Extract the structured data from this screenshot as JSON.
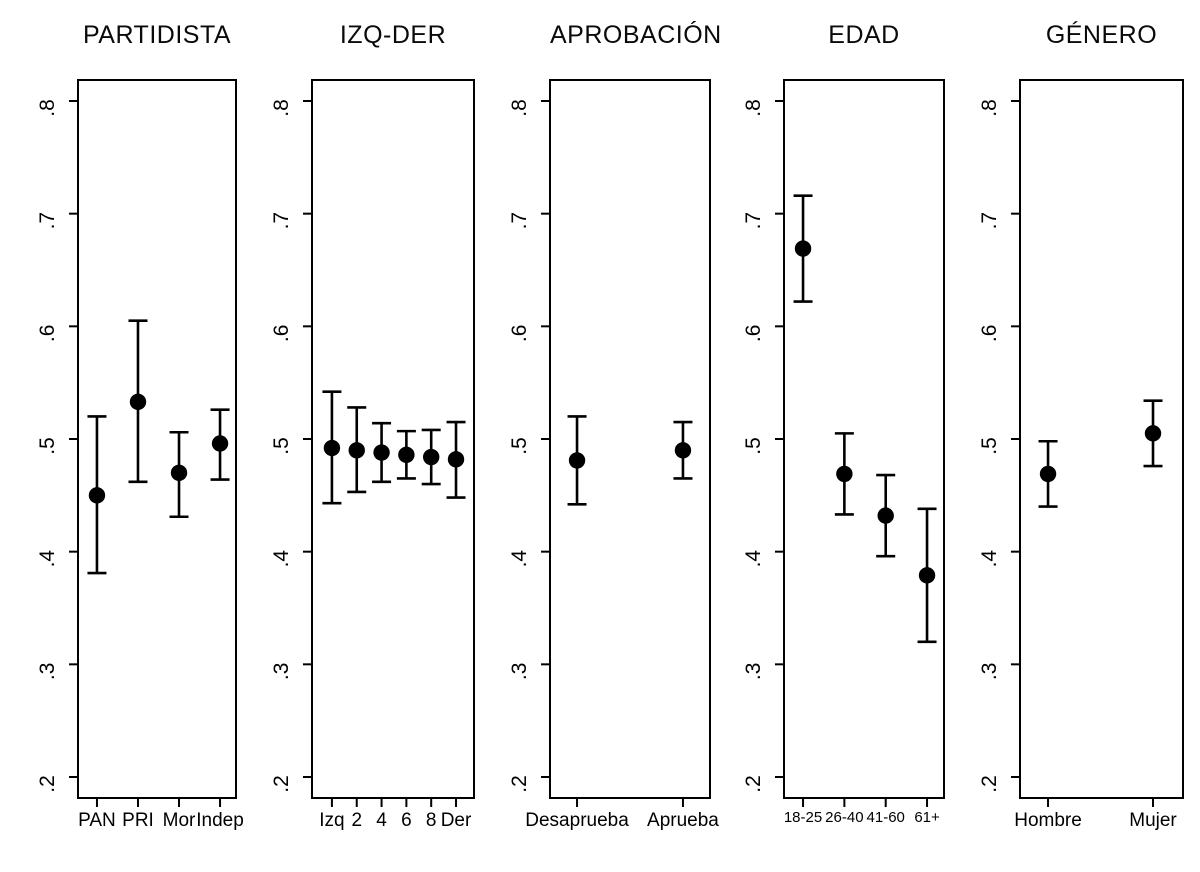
{
  "figure": {
    "background": "#ffffff",
    "ink_color": "#000000"
  },
  "chart_data": {
    "type": "scatter",
    "subtype": "coefficient-plot-with-confidence-intervals",
    "grid": "off",
    "legend": "none",
    "y_axis": {
      "tick_labels": [
        ".8",
        ".7",
        ".6",
        ".5",
        ".4",
        ".3",
        ".2"
      ],
      "tick_values": [
        0.8,
        0.7,
        0.6,
        0.5,
        0.4,
        0.3,
        0.2
      ],
      "range": [
        0.18,
        0.82
      ]
    },
    "panels": [
      {
        "title": "PARTIDISTA",
        "categories": [
          "PAN",
          "PRI",
          "Mor",
          "Indep"
        ],
        "points": [
          {
            "label": "PAN",
            "value": 0.45,
            "ci_low": 0.381,
            "ci_high": 0.52
          },
          {
            "label": "PRI",
            "value": 0.533,
            "ci_low": 0.462,
            "ci_high": 0.605
          },
          {
            "label": "Mor",
            "value": 0.47,
            "ci_low": 0.431,
            "ci_high": 0.506
          },
          {
            "label": "Indep",
            "value": 0.496,
            "ci_low": 0.464,
            "ci_high": 0.526
          }
        ]
      },
      {
        "title": "IZQ-DER",
        "categories": [
          "Izq",
          "2",
          "4",
          "6",
          "8",
          "Der"
        ],
        "points": [
          {
            "label": "Izq",
            "value": 0.492,
            "ci_low": 0.443,
            "ci_high": 0.542
          },
          {
            "label": "2",
            "value": 0.49,
            "ci_low": 0.453,
            "ci_high": 0.528
          },
          {
            "label": "4",
            "value": 0.488,
            "ci_low": 0.462,
            "ci_high": 0.514
          },
          {
            "label": "6",
            "value": 0.486,
            "ci_low": 0.465,
            "ci_high": 0.507
          },
          {
            "label": "8",
            "value": 0.484,
            "ci_low": 0.46,
            "ci_high": 0.508
          },
          {
            "label": "Der",
            "value": 0.482,
            "ci_low": 0.448,
            "ci_high": 0.515
          }
        ]
      },
      {
        "title": "APROBACIÓN",
        "categories": [
          "Desaprueba",
          "Aprueba"
        ],
        "points": [
          {
            "label": "Desaprueba",
            "value": 0.481,
            "ci_low": 0.442,
            "ci_high": 0.52
          },
          {
            "label": "Aprueba",
            "value": 0.49,
            "ci_low": 0.465,
            "ci_high": 0.515
          }
        ]
      },
      {
        "title": "EDAD",
        "categories": [
          "18-25",
          "26-40",
          "41-60",
          "61+"
        ],
        "points": [
          {
            "label": "18-25",
            "value": 0.669,
            "ci_low": 0.622,
            "ci_high": 0.716
          },
          {
            "label": "26-40",
            "value": 0.469,
            "ci_low": 0.433,
            "ci_high": 0.505
          },
          {
            "label": "41-60",
            "value": 0.432,
            "ci_low": 0.396,
            "ci_high": 0.468
          },
          {
            "label": "61+",
            "value": 0.379,
            "ci_low": 0.32,
            "ci_high": 0.438
          }
        ]
      },
      {
        "title": "GÉNERO",
        "categories": [
          "Hombre",
          "Mujer"
        ],
        "points": [
          {
            "label": "Hombre",
            "value": 0.469,
            "ci_low": 0.44,
            "ci_high": 0.498
          },
          {
            "label": "Mujer",
            "value": 0.505,
            "ci_low": 0.476,
            "ci_high": 0.534
          }
        ]
      }
    ]
  }
}
